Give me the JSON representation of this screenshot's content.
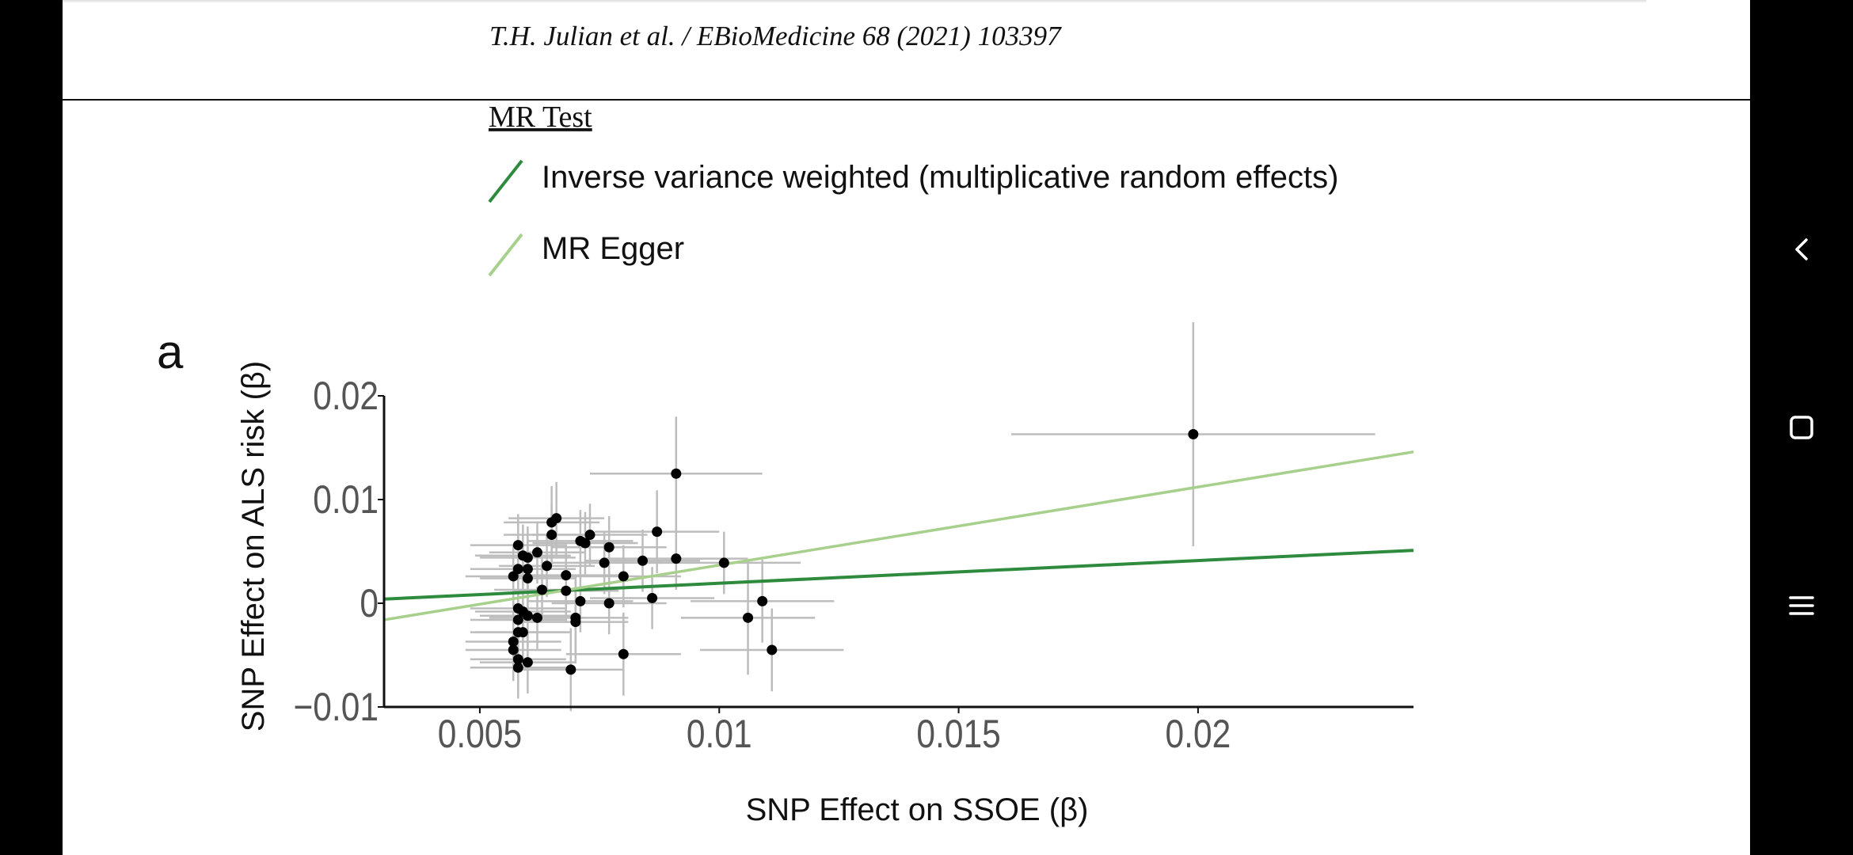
{
  "header": {
    "running_head": "T.H. Julian et al. / EBioMedicine 68 (2021) 103397"
  },
  "figure": {
    "panel_label": "a"
  },
  "colors": {
    "ivw": "#2e8b3e",
    "egger": "#a8d08d",
    "points": "#000000",
    "error_bars": "#bdbdbd"
  },
  "chart_data": {
    "type": "scatter",
    "xlabel": "SNP Effect on SSOE (β)",
    "ylabel": "SNP Effect on ALS risk (β)",
    "xlim": [
      0.003,
      0.0245
    ],
    "ylim": [
      -0.01,
      0.02
    ],
    "x_ticks": [
      0.005,
      0.01,
      0.015,
      0.02
    ],
    "x_tick_labels": [
      "0.005",
      "0.01",
      "0.015",
      "0.02"
    ],
    "y_ticks": [
      -0.01,
      0,
      0.01,
      0.02
    ],
    "y_tick_labels": [
      "−0.01",
      "0",
      "0.01",
      "0.02"
    ],
    "legend": {
      "title": "MR Test",
      "position": "top-left",
      "entries": [
        "Inverse variance weighted (multiplicative random effects)",
        "MR Egger"
      ]
    },
    "lines": [
      {
        "name": "Inverse variance weighted (multiplicative random effects)",
        "x": [
          0.003,
          0.0245
        ],
        "y": [
          0.0004,
          0.0051
        ]
      },
      {
        "name": "MR Egger",
        "x": [
          0.003,
          0.0245
        ],
        "y": [
          -0.0016,
          0.0146
        ]
      }
    ],
    "points": [
      {
        "x": 0.0199,
        "y": 0.0163,
        "x_err": 0.0038,
        "y_err": 0.0108
      },
      {
        "x": 0.0091,
        "y": 0.0125,
        "x_err": 0.0018,
        "y_err": 0.0055
      },
      {
        "x": 0.0087,
        "y": 0.0069,
        "x_err": 0.0013,
        "y_err": 0.004
      },
      {
        "x": 0.0091,
        "y": 0.0043,
        "x_err": 0.0015,
        "y_err": 0.003
      },
      {
        "x": 0.0101,
        "y": 0.0039,
        "x_err": 0.0016,
        "y_err": 0.003
      },
      {
        "x": 0.0106,
        "y": -0.0014,
        "x_err": 0.0014,
        "y_err": 0.0055
      },
      {
        "x": 0.0109,
        "y": 0.0002,
        "x_err": 0.0015,
        "y_err": 0.004
      },
      {
        "x": 0.0111,
        "y": -0.0045,
        "x_err": 0.0015,
        "y_err": 0.004
      },
      {
        "x": 0.0084,
        "y": 0.0041,
        "x_err": 0.0012,
        "y_err": 0.003
      },
      {
        "x": 0.0086,
        "y": 0.0005,
        "x_err": 0.0013,
        "y_err": 0.003
      },
      {
        "x": 0.008,
        "y": 0.0026,
        "x_err": 0.0012,
        "y_err": 0.003
      },
      {
        "x": 0.008,
        "y": -0.0049,
        "x_err": 0.0012,
        "y_err": 0.004
      },
      {
        "x": 0.0077,
        "y": 0.0054,
        "x_err": 0.0012,
        "y_err": 0.003
      },
      {
        "x": 0.0076,
        "y": 0.0039,
        "x_err": 0.0012,
        "y_err": 0.003
      },
      {
        "x": 0.0077,
        "y": 0.0,
        "x_err": 0.0012,
        "y_err": 0.003
      },
      {
        "x": 0.0073,
        "y": 0.0066,
        "x_err": 0.0012,
        "y_err": 0.003
      },
      {
        "x": 0.0072,
        "y": 0.0058,
        "x_err": 0.0011,
        "y_err": 0.003
      },
      {
        "x": 0.0071,
        "y": 0.006,
        "x_err": 0.0011,
        "y_err": 0.003
      },
      {
        "x": 0.007,
        "y": -0.0014,
        "x_err": 0.0011,
        "y_err": 0.004
      },
      {
        "x": 0.007,
        "y": -0.0018,
        "x_err": 0.0011,
        "y_err": 0.004
      },
      {
        "x": 0.0071,
        "y": 0.0002,
        "x_err": 0.0011,
        "y_err": 0.003
      },
      {
        "x": 0.0069,
        "y": -0.0064,
        "x_err": 0.0011,
        "y_err": 0.004
      },
      {
        "x": 0.0068,
        "y": 0.0027,
        "x_err": 0.0011,
        "y_err": 0.003
      },
      {
        "x": 0.0068,
        "y": 0.0012,
        "x_err": 0.0011,
        "y_err": 0.003
      },
      {
        "x": 0.0066,
        "y": 0.0082,
        "x_err": 0.001,
        "y_err": 0.0035
      },
      {
        "x": 0.0065,
        "y": 0.0078,
        "x_err": 0.001,
        "y_err": 0.0035
      },
      {
        "x": 0.0065,
        "y": 0.0066,
        "x_err": 0.001,
        "y_err": 0.003
      },
      {
        "x": 0.0064,
        "y": 0.0036,
        "x_err": 0.001,
        "y_err": 0.003
      },
      {
        "x": 0.0063,
        "y": 0.0013,
        "x_err": 0.001,
        "y_err": 0.003
      },
      {
        "x": 0.0062,
        "y": 0.0049,
        "x_err": 0.001,
        "y_err": 0.003
      },
      {
        "x": 0.0062,
        "y": -0.0014,
        "x_err": 0.001,
        "y_err": 0.003
      },
      {
        "x": 0.006,
        "y": 0.0044,
        "x_err": 0.001,
        "y_err": 0.003
      },
      {
        "x": 0.006,
        "y": 0.0033,
        "x_err": 0.001,
        "y_err": 0.003
      },
      {
        "x": 0.006,
        "y": 0.0024,
        "x_err": 0.001,
        "y_err": 0.003
      },
      {
        "x": 0.0059,
        "y": 0.0046,
        "x_err": 0.001,
        "y_err": 0.003
      },
      {
        "x": 0.006,
        "y": -0.0012,
        "x_err": 0.001,
        "y_err": 0.003
      },
      {
        "x": 0.0059,
        "y": -0.0008,
        "x_err": 0.001,
        "y_err": 0.003
      },
      {
        "x": 0.006,
        "y": -0.0057,
        "x_err": 0.001,
        "y_err": 0.003
      },
      {
        "x": 0.0058,
        "y": 0.0056,
        "x_err": 0.001,
        "y_err": 0.003
      },
      {
        "x": 0.0058,
        "y": 0.0033,
        "x_err": 0.001,
        "y_err": 0.003
      },
      {
        "x": 0.0057,
        "y": 0.0026,
        "x_err": 0.001,
        "y_err": 0.003
      },
      {
        "x": 0.0058,
        "y": -0.0005,
        "x_err": 0.001,
        "y_err": 0.003
      },
      {
        "x": 0.0058,
        "y": -0.0016,
        "x_err": 0.001,
        "y_err": 0.003
      },
      {
        "x": 0.0058,
        "y": -0.0028,
        "x_err": 0.001,
        "y_err": 0.003
      },
      {
        "x": 0.0057,
        "y": -0.0037,
        "x_err": 0.001,
        "y_err": 0.003
      },
      {
        "x": 0.0057,
        "y": -0.0045,
        "x_err": 0.001,
        "y_err": 0.003
      },
      {
        "x": 0.0058,
        "y": -0.0054,
        "x_err": 0.001,
        "y_err": 0.003
      },
      {
        "x": 0.0058,
        "y": -0.0062,
        "x_err": 0.001,
        "y_err": 0.003
      },
      {
        "x": 0.0059,
        "y": -0.0028,
        "x_err": 0.001,
        "y_err": 0.003
      }
    ]
  }
}
